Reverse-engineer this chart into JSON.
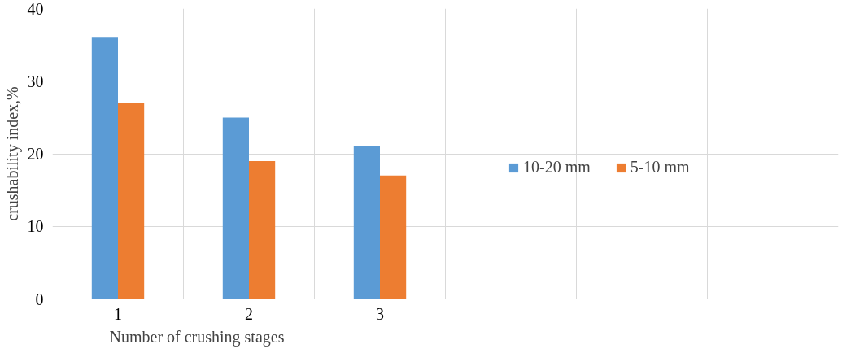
{
  "chart_data": {
    "type": "bar",
    "xlabel": "Number of crushing stages",
    "ylabel": "crushability index,%",
    "categories": [
      "1",
      "2",
      "3",
      null,
      null,
      null
    ],
    "series": [
      {
        "name": "10-20 mm",
        "color": "#5b9bd5",
        "values": [
          36,
          25,
          21,
          null,
          null,
          null
        ]
      },
      {
        "name": "5-10 mm",
        "color": "#ed7d31",
        "values": [
          27,
          19,
          17,
          null,
          null,
          null
        ]
      }
    ],
    "ylim": [
      0,
      40
    ],
    "yticks": [
      0,
      10,
      20,
      30,
      40
    ],
    "grid": true,
    "legend": "right"
  }
}
